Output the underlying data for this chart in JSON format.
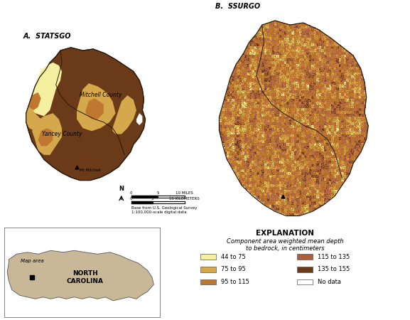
{
  "title_a": "A.  STATSGO",
  "title_b": "B.  SSURGO",
  "explanation_title": "EXPLANATION",
  "explanation_subtitle": "Component area weighted mean depth\nto bedrock, in centimeters",
  "legend_items": [
    {
      "label": "44 to 75",
      "color": "#F5EFA0"
    },
    {
      "label": "75 to 95",
      "color": "#D4A84B"
    },
    {
      "label": "95 to 115",
      "color": "#C07830"
    },
    {
      "label": "115 to 135",
      "color": "#A86040"
    },
    {
      "label": "135 to 155",
      "color": "#6B3A18"
    },
    {
      "label": "No data",
      "color": "#FFFFFF"
    }
  ],
  "base_text": "Base from U.S. Geological Survey\n1:100,000-scale digital data",
  "mitchell_label": "Mitchell County",
  "yancey_label": "Yancey County",
  "mt_mitchell_label": "Mt Mitchell",
  "bg_color": "#FFFFFF",
  "dark_brown": "#6B3A18",
  "med_brown": "#C07830",
  "tan": "#D4A84B",
  "light_yellow": "#F5EFA0",
  "reddish_brown": "#A86040",
  "nc_fill": "#C8B898",
  "nc_border": "#888888"
}
